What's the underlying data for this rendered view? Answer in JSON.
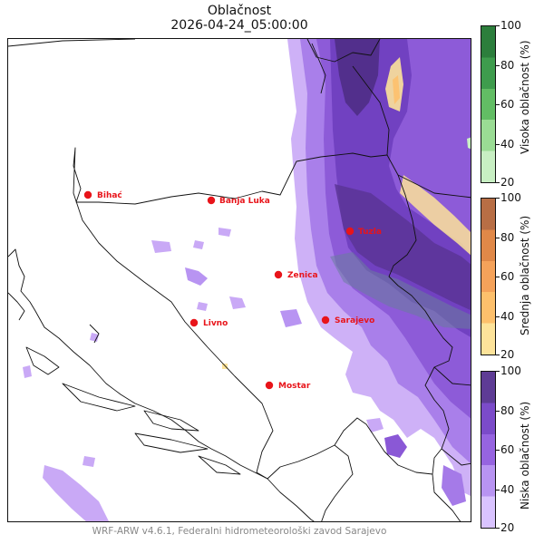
{
  "title": "Oblačnost",
  "subtitle": "2026-04-24_05:00:00",
  "footer": "WRF-ARW v4.6.1, Federalni hidrometeorološki zavod Sarajevo",
  "cities": [
    {
      "name": "Bihać"
    },
    {
      "name": "Banja Luka"
    },
    {
      "name": "Tuzla"
    },
    {
      "name": "Zenica"
    },
    {
      "name": "Sarajevo"
    },
    {
      "name": "Livno"
    },
    {
      "name": "Mostar"
    }
  ],
  "colorbars": [
    {
      "label": "Visoka oblačnost (%)",
      "ticks": [
        "100",
        "80",
        "60",
        "40",
        "20"
      ],
      "colors": [
        "#c8efc3",
        "#9adc94",
        "#62bd64",
        "#3e9c4d",
        "#2c7e3c"
      ]
    },
    {
      "label": "Srednja oblačnost (%)",
      "ticks": [
        "100",
        "80",
        "60",
        "40",
        "20"
      ],
      "colors": [
        "#fde39a",
        "#fdc06c",
        "#f5a25a",
        "#e08848",
        "#b86e45"
      ]
    },
    {
      "label": "Niska oblačnost (%)",
      "ticks": [
        "100",
        "80",
        "60",
        "40",
        "20"
      ],
      "colors": [
        "#d9c3ff",
        "#b894f2",
        "#9664e0",
        "#7b4bc9",
        "#5e3c95"
      ]
    }
  ],
  "colors": {
    "city_marker": "#e8141a",
    "boundary": "#111111"
  }
}
